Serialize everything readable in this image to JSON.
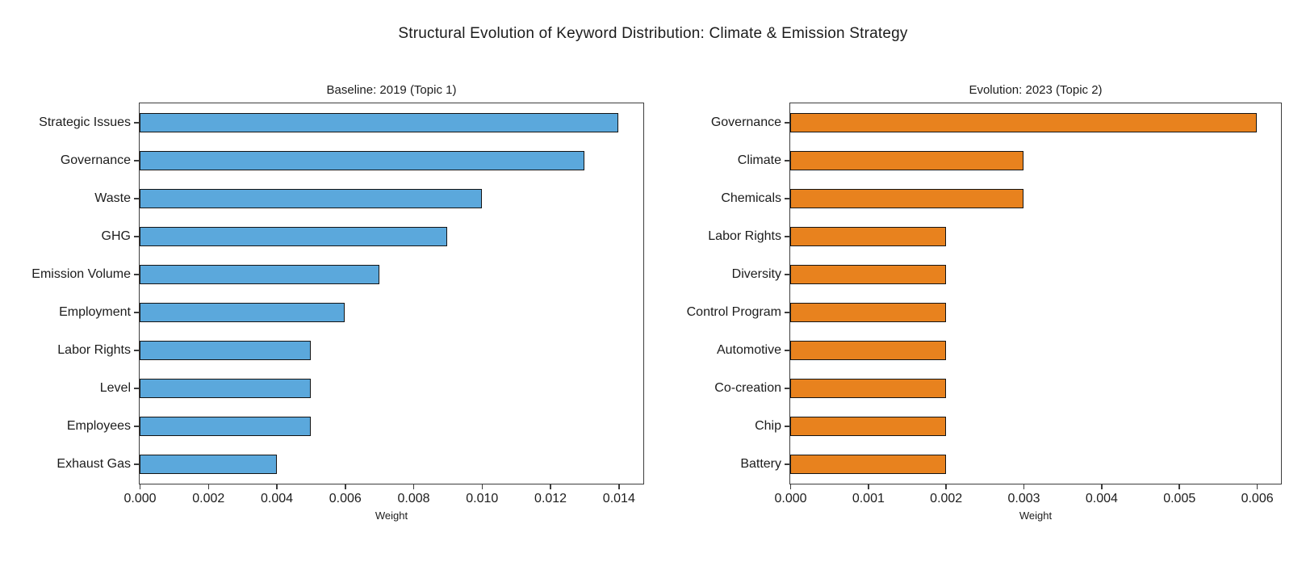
{
  "figure": {
    "title": "Structural Evolution of Keyword Distribution: Climate & Emission Strategy"
  },
  "colors": {
    "baseline_bar": "#5BA8DC",
    "evolution_bar": "#E8821E",
    "bar_edge": "#141414",
    "text": "#1c1c1c",
    "spine": "#3d3d3d"
  },
  "chart_data": [
    {
      "type": "bar",
      "orientation": "horizontal",
      "title": "Baseline: 2019 (Topic 1)",
      "categories": [
        "Strategic Issues",
        "Governance",
        "Waste",
        "GHG",
        "Emission Volume",
        "Employment",
        "Labor Rights",
        "Level",
        "Employees",
        "Exhaust Gas"
      ],
      "values": [
        0.014,
        0.013,
        0.01,
        0.009,
        0.007,
        0.006,
        0.005,
        0.005,
        0.005,
        0.004
      ],
      "xlabel": "Weight",
      "ylabel": "",
      "xlim": [
        0,
        0.0147
      ],
      "xticks": [
        0.0,
        0.002,
        0.004,
        0.006,
        0.008,
        0.01,
        0.012,
        0.014
      ],
      "tick_decimals": 3,
      "grid": false,
      "legend": null,
      "bar_color": "#5BA8DC"
    },
    {
      "type": "bar",
      "orientation": "horizontal",
      "title": "Evolution: 2023 (Topic 2)",
      "categories": [
        "Governance",
        "Climate",
        "Chemicals",
        "Labor Rights",
        "Diversity",
        "Control Program",
        "Automotive",
        "Co-creation",
        "Chip",
        "Battery"
      ],
      "values": [
        0.006,
        0.003,
        0.003,
        0.002,
        0.002,
        0.002,
        0.002,
        0.002,
        0.002,
        0.002
      ],
      "xlabel": "Weight",
      "ylabel": "",
      "xlim": [
        0,
        0.0063
      ],
      "xticks": [
        0.0,
        0.001,
        0.002,
        0.003,
        0.004,
        0.005,
        0.006
      ],
      "tick_decimals": 3,
      "grid": false,
      "legend": null,
      "bar_color": "#E8821E"
    }
  ]
}
